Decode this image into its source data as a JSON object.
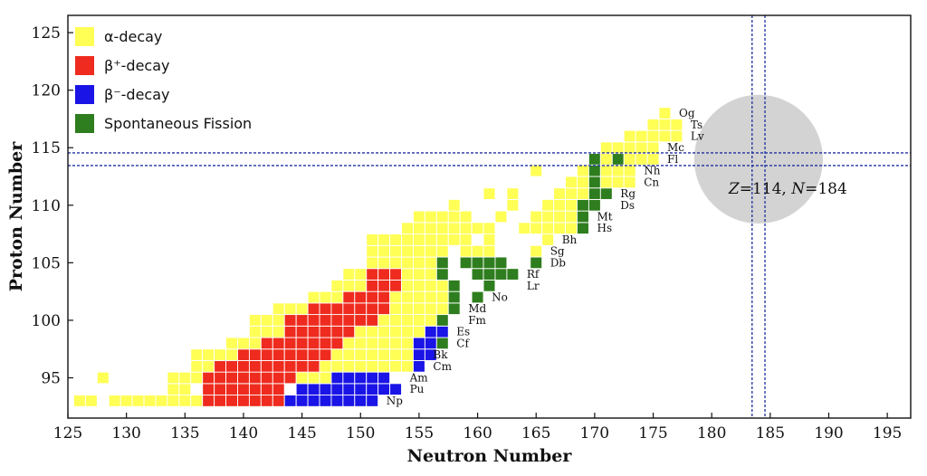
{
  "chart_data": {
    "type": "heatmap",
    "xlabel": "Neutron Number",
    "ylabel": "Proton Number",
    "xlim": [
      125,
      197
    ],
    "ylim": [
      91.5,
      126.5
    ],
    "x_ticks": [
      125,
      130,
      135,
      140,
      145,
      150,
      155,
      160,
      165,
      170,
      175,
      180,
      185,
      190,
      195
    ],
    "y_ticks": [
      95,
      100,
      105,
      110,
      115,
      120,
      125
    ],
    "legend": {
      "placement": "top-left",
      "entries": [
        {
          "key": "alpha",
          "label": "α-decay",
          "color": "#ffff55"
        },
        {
          "key": "bplus",
          "label": "β⁺-decay",
          "color": "#ee2b1e"
        },
        {
          "key": "bminus",
          "label": "β⁻-decay",
          "color": "#1a14e6"
        },
        {
          "key": "sf",
          "label": "Spontaneous Fission",
          "color": "#2e7d1e"
        }
      ]
    },
    "magic": {
      "Z": 114,
      "N": 184,
      "label_z": "Z",
      "label_n": "N",
      "label": "=114, ",
      "label2": "=184"
    },
    "element_labels": [
      {
        "text": "Og",
        "n": 177.2,
        "z": 118
      },
      {
        "text": "Ts",
        "n": 178.2,
        "z": 117
      },
      {
        "text": "Lv",
        "n": 178.2,
        "z": 116
      },
      {
        "text": "Mc",
        "n": 176.2,
        "z": 115
      },
      {
        "text": "Fl",
        "n": 176.2,
        "z": 114
      },
      {
        "text": "Nh",
        "n": 174.2,
        "z": 113
      },
      {
        "text": "Cn",
        "n": 174.2,
        "z": 112
      },
      {
        "text": "Rg",
        "n": 172.2,
        "z": 111
      },
      {
        "text": "Ds",
        "n": 172.2,
        "z": 110
      },
      {
        "text": "Mt",
        "n": 170.2,
        "z": 109
      },
      {
        "text": "Hs",
        "n": 170.2,
        "z": 108
      },
      {
        "text": "Bh",
        "n": 167.2,
        "z": 107
      },
      {
        "text": "Sg",
        "n": 166.2,
        "z": 106
      },
      {
        "text": "Db",
        "n": 166.2,
        "z": 105
      },
      {
        "text": "Rf",
        "n": 164.2,
        "z": 104
      },
      {
        "text": "Lr",
        "n": 164.2,
        "z": 103
      },
      {
        "text": "No",
        "n": 161.2,
        "z": 102
      },
      {
        "text": "Md",
        "n": 159.2,
        "z": 101
      },
      {
        "text": "Fm",
        "n": 159.2,
        "z": 100
      },
      {
        "text": "Es",
        "n": 158.2,
        "z": 99
      },
      {
        "text": "Cf",
        "n": 158.2,
        "z": 98
      },
      {
        "text": "Bk",
        "n": 156.2,
        "z": 97
      },
      {
        "text": "Cm",
        "n": 156.2,
        "z": 96
      },
      {
        "text": "Am",
        "n": 154.2,
        "z": 95
      },
      {
        "text": "Pu",
        "n": 154.2,
        "z": 94
      },
      {
        "text": "Np",
        "n": 152.2,
        "z": 93
      }
    ],
    "isotopes": [
      {
        "z": 93,
        "n0": 126,
        "n1": 127,
        "mode": "alpha"
      },
      {
        "z": 93,
        "n0": 129,
        "n1": 136,
        "mode": "alpha"
      },
      {
        "z": 93,
        "n0": 137,
        "n1": 143,
        "mode": "bplus"
      },
      {
        "z": 93,
        "n0": 144,
        "n1": 151,
        "mode": "bminus"
      },
      {
        "z": 94,
        "n0": 134,
        "n1": 135,
        "mode": "alpha"
      },
      {
        "z": 94,
        "n0": 137,
        "n1": 143,
        "mode": "bplus"
      },
      {
        "z": 94,
        "n0": 145,
        "n1": 153,
        "mode": "bminus"
      },
      {
        "z": 95,
        "n0": 128,
        "n1": 128,
        "mode": "alpha"
      },
      {
        "z": 95,
        "n0": 134,
        "n1": 136,
        "mode": "alpha"
      },
      {
        "z": 95,
        "n0": 137,
        "n1": 144,
        "mode": "bplus"
      },
      {
        "z": 95,
        "n0": 145,
        "n1": 147,
        "mode": "alpha"
      },
      {
        "z": 95,
        "n0": 148,
        "n1": 152,
        "mode": "bminus"
      },
      {
        "z": 96,
        "n0": 136,
        "n1": 137,
        "mode": "alpha"
      },
      {
        "z": 96,
        "n0": 138,
        "n1": 146,
        "mode": "bplus"
      },
      {
        "z": 96,
        "n0": 147,
        "n1": 154,
        "mode": "alpha"
      },
      {
        "z": 96,
        "n0": 155,
        "n1": 155,
        "mode": "bminus"
      },
      {
        "z": 97,
        "n0": 136,
        "n1": 139,
        "mode": "alpha"
      },
      {
        "z": 97,
        "n0": 140,
        "n1": 147,
        "mode": "bplus"
      },
      {
        "z": 97,
        "n0": 148,
        "n1": 154,
        "mode": "alpha"
      },
      {
        "z": 97,
        "n0": 155,
        "n1": 156,
        "mode": "bminus"
      },
      {
        "z": 98,
        "n0": 139,
        "n1": 141,
        "mode": "alpha"
      },
      {
        "z": 98,
        "n0": 142,
        "n1": 148,
        "mode": "bplus"
      },
      {
        "z": 98,
        "n0": 149,
        "n1": 154,
        "mode": "alpha"
      },
      {
        "z": 98,
        "n0": 155,
        "n1": 156,
        "mode": "bminus"
      },
      {
        "z": 98,
        "n0": 157,
        "n1": 157,
        "mode": "sf"
      },
      {
        "z": 99,
        "n0": 141,
        "n1": 143,
        "mode": "alpha"
      },
      {
        "z": 99,
        "n0": 144,
        "n1": 149,
        "mode": "bplus"
      },
      {
        "z": 99,
        "n0": 150,
        "n1": 155,
        "mode": "alpha"
      },
      {
        "z": 99,
        "n0": 156,
        "n1": 157,
        "mode": "bminus"
      },
      {
        "z": 100,
        "n0": 141,
        "n1": 143,
        "mode": "alpha"
      },
      {
        "z": 100,
        "n0": 144,
        "n1": 151,
        "mode": "bplus"
      },
      {
        "z": 100,
        "n0": 152,
        "n1": 156,
        "mode": "alpha"
      },
      {
        "z": 100,
        "n0": 157,
        "n1": 157,
        "mode": "sf"
      },
      {
        "z": 101,
        "n0": 143,
        "n1": 145,
        "mode": "alpha"
      },
      {
        "z": 101,
        "n0": 146,
        "n1": 152,
        "mode": "bplus"
      },
      {
        "z": 101,
        "n0": 153,
        "n1": 157,
        "mode": "alpha"
      },
      {
        "z": 101,
        "n0": 158,
        "n1": 158,
        "mode": "sf"
      },
      {
        "z": 102,
        "n0": 146,
        "n1": 148,
        "mode": "alpha"
      },
      {
        "z": 102,
        "n0": 149,
        "n1": 152,
        "mode": "bplus"
      },
      {
        "z": 102,
        "n0": 153,
        "n1": 157,
        "mode": "alpha"
      },
      {
        "z": 102,
        "n0": 158,
        "n1": 158,
        "mode": "sf"
      },
      {
        "z": 102,
        "n0": 160,
        "n1": 160,
        "mode": "sf"
      },
      {
        "z": 103,
        "n0": 148,
        "n1": 150,
        "mode": "alpha"
      },
      {
        "z": 103,
        "n0": 151,
        "n1": 153,
        "mode": "bplus"
      },
      {
        "z": 103,
        "n0": 154,
        "n1": 157,
        "mode": "alpha"
      },
      {
        "z": 103,
        "n0": 158,
        "n1": 158,
        "mode": "sf"
      },
      {
        "z": 103,
        "n0": 161,
        "n1": 161,
        "mode": "sf"
      },
      {
        "z": 104,
        "n0": 149,
        "n1": 150,
        "mode": "alpha"
      },
      {
        "z": 104,
        "n0": 151,
        "n1": 153,
        "mode": "bplus"
      },
      {
        "z": 104,
        "n0": 154,
        "n1": 156,
        "mode": "alpha"
      },
      {
        "z": 104,
        "n0": 157,
        "n1": 157,
        "mode": "sf"
      },
      {
        "z": 104,
        "n0": 160,
        "n1": 161,
        "mode": "sf"
      },
      {
        "z": 104,
        "n0": 162,
        "n1": 163,
        "mode": "sf"
      },
      {
        "z": 105,
        "n0": 151,
        "n1": 156,
        "mode": "alpha"
      },
      {
        "z": 105,
        "n0": 157,
        "n1": 157,
        "mode": "sf"
      },
      {
        "z": 105,
        "n0": 159,
        "n1": 162,
        "mode": "sf"
      },
      {
        "z": 105,
        "n0": 165,
        "n1": 165,
        "mode": "sf"
      },
      {
        "z": 106,
        "n0": 151,
        "n1": 157,
        "mode": "alpha"
      },
      {
        "z": 106,
        "n0": 159,
        "n1": 161,
        "mode": "alpha"
      },
      {
        "z": 106,
        "n0": 165,
        "n1": 165,
        "mode": "alpha"
      },
      {
        "z": 107,
        "n0": 151,
        "n1": 159,
        "mode": "alpha"
      },
      {
        "z": 107,
        "n0": 161,
        "n1": 161,
        "mode": "alpha"
      },
      {
        "z": 107,
        "n0": 166,
        "n1": 166,
        "mode": "alpha"
      },
      {
        "z": 108,
        "n0": 154,
        "n1": 161,
        "mode": "alpha"
      },
      {
        "z": 108,
        "n0": 164,
        "n1": 168,
        "mode": "alpha"
      },
      {
        "z": 108,
        "n0": 169,
        "n1": 169,
        "mode": "sf"
      },
      {
        "z": 109,
        "n0": 155,
        "n1": 159,
        "mode": "alpha"
      },
      {
        "z": 109,
        "n0": 162,
        "n1": 162,
        "mode": "alpha"
      },
      {
        "z": 109,
        "n0": 165,
        "n1": 168,
        "mode": "alpha"
      },
      {
        "z": 109,
        "n0": 169,
        "n1": 169,
        "mode": "sf"
      },
      {
        "z": 110,
        "n0": 158,
        "n1": 158,
        "mode": "alpha"
      },
      {
        "z": 110,
        "n0": 163,
        "n1": 163,
        "mode": "alpha"
      },
      {
        "z": 110,
        "n0": 166,
        "n1": 168,
        "mode": "alpha"
      },
      {
        "z": 110,
        "n0": 169,
        "n1": 170,
        "mode": "sf"
      },
      {
        "z": 111,
        "n0": 161,
        "n1": 161,
        "mode": "alpha"
      },
      {
        "z": 111,
        "n0": 163,
        "n1": 163,
        "mode": "alpha"
      },
      {
        "z": 111,
        "n0": 167,
        "n1": 169,
        "mode": "alpha"
      },
      {
        "z": 111,
        "n0": 170,
        "n1": 171,
        "mode": "sf"
      },
      {
        "z": 112,
        "n0": 168,
        "n1": 169,
        "mode": "alpha"
      },
      {
        "z": 112,
        "n0": 170,
        "n1": 170,
        "mode": "sf"
      },
      {
        "z": 112,
        "n0": 171,
        "n1": 173,
        "mode": "alpha"
      },
      {
        "z": 113,
        "n0": 165,
        "n1": 165,
        "mode": "alpha"
      },
      {
        "z": 113,
        "n0": 169,
        "n1": 169,
        "mode": "alpha"
      },
      {
        "z": 113,
        "n0": 170,
        "n1": 170,
        "mode": "sf"
      },
      {
        "z": 113,
        "n0": 171,
        "n1": 173,
        "mode": "alpha"
      },
      {
        "z": 114,
        "n0": 170,
        "n1": 170,
        "mode": "sf"
      },
      {
        "z": 114,
        "n0": 171,
        "n1": 171,
        "mode": "alpha"
      },
      {
        "z": 114,
        "n0": 172,
        "n1": 172,
        "mode": "sf"
      },
      {
        "z": 114,
        "n0": 173,
        "n1": 175,
        "mode": "alpha"
      },
      {
        "z": 115,
        "n0": 171,
        "n1": 175,
        "mode": "alpha"
      },
      {
        "z": 116,
        "n0": 173,
        "n1": 177,
        "mode": "alpha"
      },
      {
        "z": 117,
        "n0": 175,
        "n1": 177,
        "mode": "alpha"
      },
      {
        "z": 118,
        "n0": 176,
        "n1": 176,
        "mode": "alpha"
      }
    ]
  }
}
